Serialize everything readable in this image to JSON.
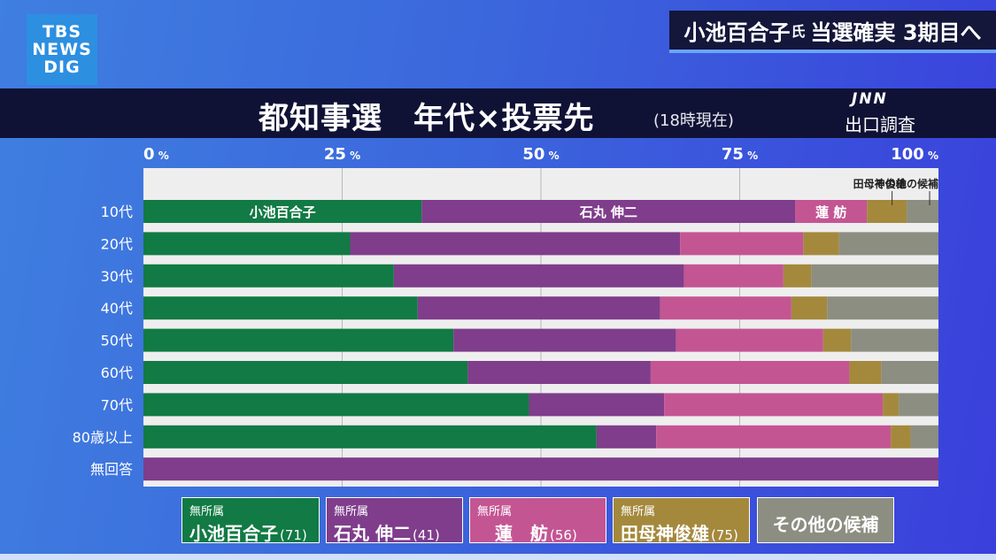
{
  "broadcast": {
    "logo_lines": [
      "TBS",
      "NEWS",
      "DIG"
    ],
    "ticker_main": "小池百合子",
    "ticker_small": "氏",
    "ticker_rest": "当選確実 3期目へ"
  },
  "header": {
    "title": "都知事選　年代×投票先",
    "time_note": "(18時現在)",
    "source_logo": "JNN",
    "source_label": "出口調査"
  },
  "legend": [
    {
      "affiliation": "無所属",
      "name": "小池百合子",
      "age": "(71)"
    },
    {
      "affiliation": "無所属",
      "name": "石丸 伸二",
      "age": "(41)"
    },
    {
      "affiliation": "無所属",
      "name": "蓮　舫",
      "age": "(56)"
    },
    {
      "affiliation": "無所属",
      "name": "田母神俊雄",
      "age": "(75)"
    },
    {
      "affiliation": "",
      "name": "その他の候補",
      "age": ""
    }
  ],
  "chart_data": {
    "type": "bar",
    "stacked": true,
    "orientation": "horizontal",
    "xlim": [
      0,
      100
    ],
    "x_ticks": [
      "0%",
      "25%",
      "50%",
      "75%",
      "100%"
    ],
    "categories": [
      "10代",
      "20代",
      "30代",
      "40代",
      "50代",
      "60代",
      "70代",
      "80歳以上",
      "無回答"
    ],
    "series": [
      {
        "name": "小池百合子",
        "color": "#127a44",
        "inbar_label": "小池百合子",
        "values": [
          35.0,
          26.0,
          31.5,
          34.5,
          39.0,
          40.8,
          48.5,
          57.0,
          0.0
        ]
      },
      {
        "name": "石丸 伸二",
        "color": "#7f3d8b",
        "inbar_label": "石丸 伸二",
        "values": [
          47.0,
          41.5,
          36.5,
          30.5,
          28.0,
          23.0,
          17.0,
          7.5,
          100.0
        ]
      },
      {
        "name": "蓮　舫",
        "color": "#c45593",
        "inbar_label": "蓮 舫",
        "values": [
          9.0,
          15.5,
          12.5,
          16.5,
          18.5,
          25.0,
          27.5,
          29.5,
          0.0
        ]
      },
      {
        "name": "田母神俊雄",
        "color": "#a4893d",
        "inbar_label": "田母神俊雄",
        "values": [
          5.0,
          4.5,
          3.5,
          4.5,
          3.5,
          4.0,
          2.0,
          2.5,
          0.0
        ]
      },
      {
        "name": "その他の候補",
        "color": "#8c8e82",
        "inbar_label": "その他の候補",
        "values": [
          4.0,
          12.5,
          16.0,
          14.0,
          11.0,
          7.2,
          5.0,
          3.5,
          0.0
        ]
      }
    ]
  }
}
